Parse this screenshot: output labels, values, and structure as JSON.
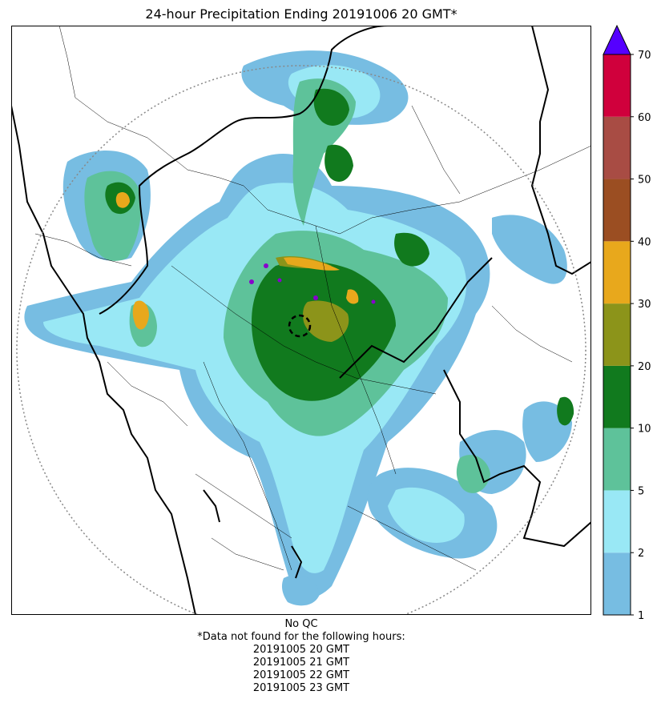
{
  "title": "24-hour Precipitation Ending 20191006 20 GMT*",
  "colorbar": {
    "labels": [
      "1",
      "2",
      "5",
      "10",
      "20",
      "30",
      "40",
      "50",
      "60",
      "70"
    ],
    "colors": [
      "#77bde2",
      "#99e8f5",
      "#5ec29a",
      "#117a1e",
      "#8c941a",
      "#e8a81c",
      "#9b4e22",
      "#a84c44",
      "#d0003c"
    ],
    "extend_color": "#5500ff"
  },
  "map_colors": {
    "light_blue": "#77bde2",
    "cyan": "#99e8f5",
    "light_green": "#5ec29a",
    "dark_green": "#117a1e",
    "olive": "#8c941a",
    "orange": "#e8a81c",
    "purple": "#8800cc"
  },
  "footer": {
    "qc": "No QC",
    "note": "*Data not found for the following hours:",
    "hours": [
      "20191005 20 GMT",
      "20191005 21 GMT",
      "20191005 22 GMT",
      "20191005 23 GMT"
    ]
  }
}
